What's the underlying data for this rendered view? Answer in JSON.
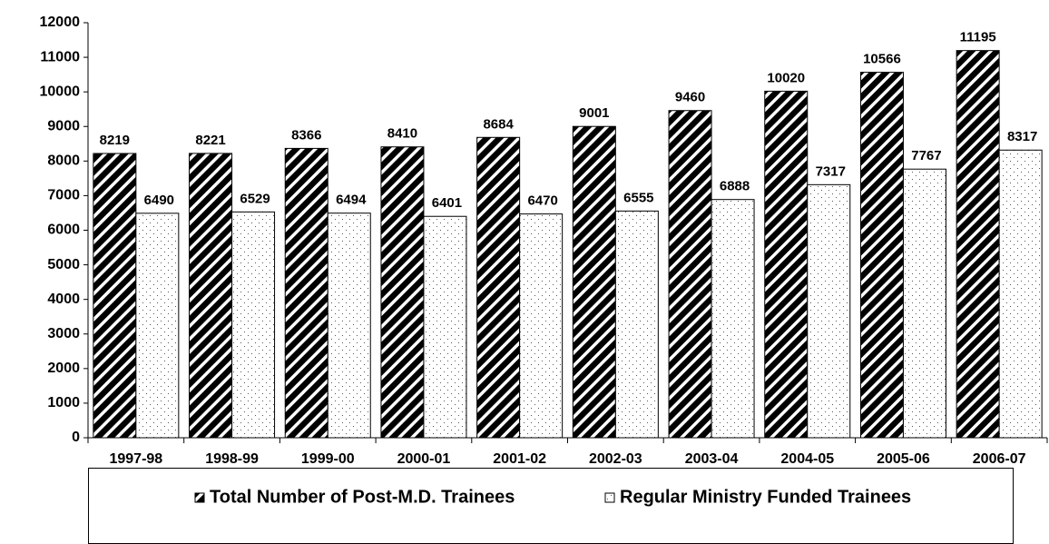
{
  "chart_data": {
    "type": "bar",
    "categories": [
      "1997-98",
      "1998-99",
      "1999-00",
      "2000-01",
      "2001-02",
      "2002-03",
      "2003-04",
      "2004-05",
      "2005-06",
      "2006-07"
    ],
    "series": [
      {
        "name": "Total Number of Post-M.D. Trainees",
        "color": "#000000",
        "pattern": "diagonal",
        "values": [
          8219,
          8221,
          8366,
          8410,
          8684,
          9001,
          9460,
          10020,
          10566,
          11195
        ]
      },
      {
        "name": "Regular Ministry Funded Trainees",
        "color": "#ffffff",
        "pattern": "dots",
        "values": [
          6490,
          6529,
          6494,
          6401,
          6470,
          6555,
          6888,
          7317,
          7767,
          8317
        ]
      }
    ],
    "ylim": [
      0,
      12000
    ],
    "yticks": [
      0,
      1000,
      2000,
      3000,
      4000,
      5000,
      6000,
      7000,
      8000,
      9000,
      10000,
      11000,
      12000
    ],
    "grid": false,
    "legend": "bottom"
  }
}
